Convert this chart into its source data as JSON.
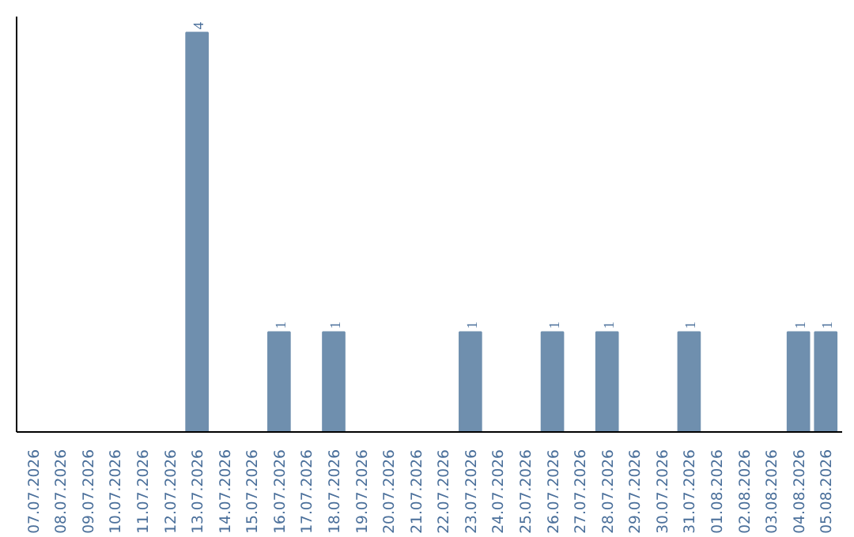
{
  "chart_data": {
    "type": "bar",
    "categories": [
      "07.07.2026",
      "08.07.2026",
      "09.07.2026",
      "10.07.2026",
      "11.07.2026",
      "12.07.2026",
      "13.07.2026",
      "14.07.2026",
      "15.07.2026",
      "16.07.2026",
      "17.07.2026",
      "18.07.2026",
      "19.07.2026",
      "20.07.2026",
      "21.07.2026",
      "22.07.2026",
      "23.07.2026",
      "24.07.2026",
      "25.07.2026",
      "26.07.2026",
      "27.07.2026",
      "28.07.2026",
      "29.07.2026",
      "30.07.2026",
      "31.07.2026",
      "01.08.2026",
      "02.08.2026",
      "03.08.2026",
      "04.08.2026",
      "05.08.2026"
    ],
    "values": [
      0,
      0,
      0,
      0,
      0,
      0,
      4,
      0,
      0,
      1,
      0,
      1,
      0,
      0,
      0,
      0,
      1,
      0,
      0,
      1,
      0,
      1,
      0,
      0,
      1,
      0,
      0,
      0,
      1,
      1
    ],
    "value_labels": [
      null,
      null,
      null,
      null,
      null,
      null,
      "4",
      null,
      null,
      "1",
      null,
      "1",
      null,
      null,
      null,
      null,
      "1",
      null,
      null,
      "1",
      null,
      "1",
      null,
      null,
      "1",
      null,
      null,
      null,
      "1",
      "1"
    ],
    "color": "#6f8fae",
    "grid": false,
    "tick_labels": "x"
  }
}
